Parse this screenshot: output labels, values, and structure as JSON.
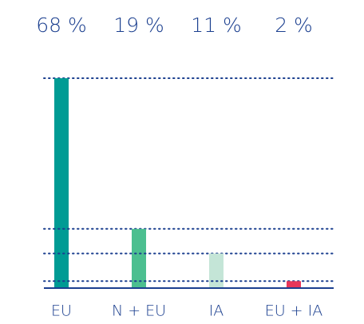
{
  "chart_data": {
    "type": "bar",
    "categories": [
      "EU",
      "N + EU",
      "IA",
      "EU + IA"
    ],
    "values": [
      68,
      19,
      11,
      2
    ],
    "value_labels": [
      "68 %",
      "19 %",
      "11 %",
      "2 %"
    ],
    "colors": [
      "#009b94",
      "#4cbf90",
      "#c4e5d7",
      "#e8365a"
    ]
  }
}
